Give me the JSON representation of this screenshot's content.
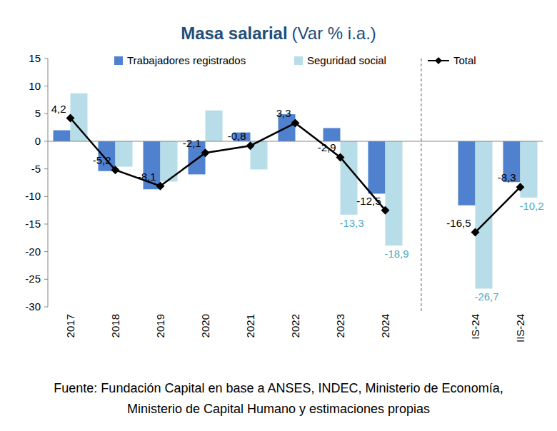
{
  "chart_data": {
    "type": "bar",
    "title": "Masa salarial",
    "subtitle": "(Var % i.a.)",
    "categories": [
      "2017",
      "2018",
      "2019",
      "2020",
      "2021",
      "2022",
      "2023",
      "2024",
      null,
      "IS-24",
      "IIS-24"
    ],
    "series": [
      {
        "name": "Trabajadores registrados",
        "type": "bar",
        "color": "#4f81cf",
        "values": [
          2.0,
          -5.4,
          -8.7,
          -6.0,
          1.6,
          4.9,
          2.4,
          -9.5,
          null,
          -11.6,
          -7.4
        ]
      },
      {
        "name": "Seguridad social",
        "type": "bar",
        "color": "#b7dde8",
        "data_labels": true,
        "values": [
          8.7,
          -4.6,
          -7.3,
          5.6,
          -5.1,
          null,
          -13.3,
          -18.9,
          null,
          -26.7,
          -10.2
        ],
        "value_labels": [
          null,
          null,
          null,
          null,
          null,
          null,
          "-13,3",
          "-18,9",
          null,
          "-26,7",
          "-10,2"
        ]
      },
      {
        "name": "Total",
        "type": "line",
        "color": "#000000",
        "marker": "diamond",
        "line_style": "solid",
        "data_labels": true,
        "values": [
          4.2,
          -5.2,
          -8.1,
          -2.1,
          -0.8,
          3.3,
          -2.9,
          -12.5,
          null,
          -16.5,
          -8.3
        ],
        "value_labels": [
          "4,2",
          "-5,2",
          "-8,1",
          "-2,1",
          "-0,8",
          "3,3",
          "-2,9",
          "-12,5",
          null,
          "-16,5",
          "-8,3"
        ]
      }
    ],
    "ylim": [
      -30,
      15
    ],
    "yticks": [
      -30,
      -25,
      -20,
      -15,
      -10,
      -5,
      0,
      5,
      10,
      15
    ],
    "grid": false,
    "legend": "top",
    "note": [
      "Fuente: Fundación Capital en base a ANSES, INDEC, Ministerio de Economía,",
      "Ministerio de Capital Humano y estimaciones propias"
    ]
  }
}
